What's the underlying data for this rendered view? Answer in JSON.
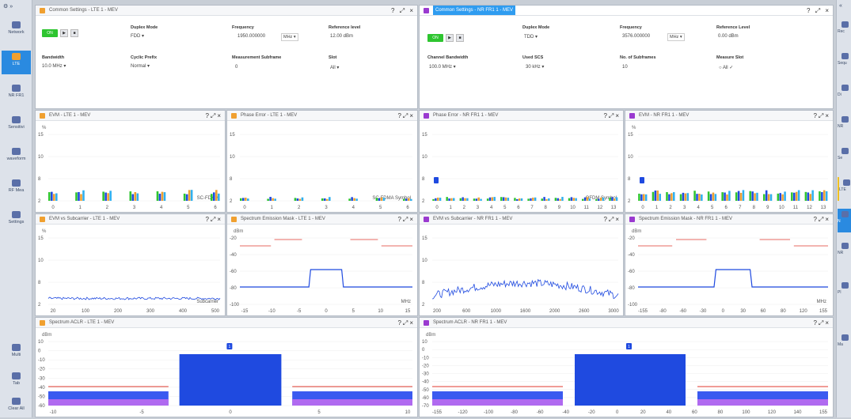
{
  "left_sidebar": [
    {
      "label": "Network",
      "active": false
    },
    {
      "label": "LTE",
      "active": true
    },
    {
      "label": "NR FR1",
      "active": false
    },
    {
      "label": "Sensitivi",
      "active": false
    },
    {
      "label": "waveform",
      "active": false
    },
    {
      "label": "RF Mea",
      "active": false
    },
    {
      "label": "Settings",
      "active": false
    },
    {
      "label": "Multi",
      "active": false
    },
    {
      "label": "Tab",
      "active": false
    },
    {
      "label": "Clear All",
      "active": false
    }
  ],
  "right_sidebar": [
    "Rec",
    "Sequ",
    "Di",
    "NR",
    "Se",
    "LTE",
    "N",
    "NR",
    "Pl",
    "Ma"
  ],
  "common": {
    "help": "?",
    "expand": "⤢",
    "close": "×",
    "on_label": "ON",
    "play": "▶",
    "stop": "■"
  },
  "lte_settings": {
    "title": "Common Settings - LTE 1 - MEV",
    "duplex_mode_label": "Duplex Mode",
    "duplex_mode_value": "FDD",
    "frequency_label": "Frequency",
    "frequency_value": "1950.000000",
    "frequency_unit": "MHz",
    "reference_level_label": "Reference level",
    "reference_level_value": "12.00 dBm",
    "bandwidth_label": "Bandwidth",
    "bandwidth_value": "10.0 MHz",
    "cyclic_prefix_label": "Cyclic Prefix",
    "cyclic_prefix_value": "Normal",
    "measurement_subframe_label": "Measurement Subframe",
    "measurement_subframe_value": "0",
    "slot_label": "Slot",
    "slot_value": "All"
  },
  "nr_settings": {
    "title": "Common Settings - NR FR1 1 - MEV",
    "duplex_mode_label": "Duplex Mode",
    "duplex_mode_value": "TDD",
    "frequency_label": "Frequency",
    "frequency_value": "3576.000000",
    "frequency_unit": "MHz",
    "reference_level_label": "Reference Level",
    "reference_level_value": "0.00 dBm",
    "channel_bandwidth_label": "Channel Bandwidth",
    "channel_bandwidth_value": "100.0 MHz",
    "used_scs_label": "Used SCS",
    "used_scs_value": "30 kHz",
    "subframes_label": "No. of Subframes",
    "subframes_value": "10",
    "measure_slot_label": "Measure Slot",
    "measure_slot_value": "All"
  },
  "charts": [
    {
      "id": "evm-lte",
      "title": "EVM - LTE 1 - MEV",
      "unit": "%",
      "kind": "evm-bars",
      "ylim": [
        0,
        15
      ],
      "yticks": [
        15,
        10,
        8,
        2
      ],
      "xticks": [
        "0",
        "1",
        "2",
        "3",
        "4",
        "5",
        "6"
      ],
      "xlabel": "SC-FDMA",
      "marker": false
    },
    {
      "id": "phase-lte",
      "title": "Phase Error - LTE 1 - MEV",
      "unit": "",
      "kind": "phase-bars",
      "ylim": [
        0,
        15
      ],
      "yticks": [
        15,
        10,
        8,
        2
      ],
      "xticks": [
        "0",
        "1",
        "2",
        "3",
        "4",
        "5",
        "6"
      ],
      "xlabel": "SC-FDMA Symbol",
      "marker": false
    },
    {
      "id": "phase-nr",
      "title": "Phase Error - NR FR1 1 - MEV",
      "unit": "",
      "kind": "phase-bars",
      "ylim": [
        0,
        15
      ],
      "yticks": [
        15,
        10,
        8,
        2
      ],
      "xticks": [
        "0",
        "1",
        "2",
        "3",
        "4",
        "5",
        "6",
        "7",
        "8",
        "9",
        "10",
        "11",
        "12",
        "13"
      ],
      "xlabel": "OFDM Symbol",
      "marker": true
    },
    {
      "id": "evm-nr",
      "title": "EVM - NR FR1 1 - MEV",
      "unit": "%",
      "kind": "evm-bars",
      "ylim": [
        0,
        15
      ],
      "yticks": [
        15,
        10,
        8,
        2
      ],
      "xticks": [
        "0",
        "1",
        "2",
        "3",
        "4",
        "5",
        "6",
        "7",
        "8",
        "9",
        "10",
        "11",
        "12",
        "13"
      ],
      "xlabel": "",
      "marker": true
    },
    {
      "id": "evmsc-lte",
      "title": "EVM vs Subcarrier - LTE 1 - MEV",
      "unit": "%",
      "kind": "noise-flat",
      "ylim": [
        0,
        15
      ],
      "yticks": [
        15,
        10,
        8,
        2
      ],
      "xticks": [
        "20",
        "100",
        "200",
        "300",
        "400",
        "500"
      ],
      "xlabel": "Subcarrier"
    },
    {
      "id": "sem-lte",
      "title": "Spectrum Emission Mask - LTE 1 - MEV",
      "unit": "dBm",
      "kind": "sem",
      "ylim": [
        -100,
        0
      ],
      "yticks": [
        "-20",
        "-40",
        "-60",
        "-80",
        "-100"
      ],
      "xticks": [
        "-15",
        "-10",
        "-5",
        "0",
        "5",
        "10",
        "15"
      ],
      "xlabel": "MHz"
    },
    {
      "id": "evmsc-nr",
      "title": "EVM vs Subcarrier - NR FR1 1 - MEV",
      "unit": "",
      "kind": "noise-hump",
      "ylim": [
        0,
        15
      ],
      "yticks": [
        15,
        10,
        8,
        2
      ],
      "xticks": [
        "200",
        "600",
        "1000",
        "1600",
        "2000",
        "2600",
        "3000"
      ],
      "xlabel": ""
    },
    {
      "id": "sem-nr",
      "title": "Spectrum Emission Mask - NR FR1 1 - MEV",
      "unit": "dBm",
      "kind": "sem",
      "ylim": [
        -100,
        -20
      ],
      "yticks": [
        "-20",
        "-40",
        "-60",
        "-80",
        "-100"
      ],
      "xticks": [
        "-155",
        "-80",
        "-60",
        "-30",
        "0",
        "30",
        "60",
        "80",
        "120",
        "155"
      ],
      "xlabel": "MHz"
    },
    {
      "id": "aclr-lte",
      "title": "Spectrum ACLR - LTE 1 - MEV",
      "unit": "dBm",
      "kind": "aclr",
      "ylim": [
        -70,
        10
      ],
      "yticks": [
        "10",
        "0",
        "-10",
        "-20",
        "-30",
        "-40",
        "-50",
        "-60"
      ],
      "xticks": [
        "-10",
        "-5",
        "0",
        "5",
        "10"
      ],
      "xlabel": "",
      "marker_label": "1"
    },
    {
      "id": "aclr-nr",
      "title": "Spectrum ACLR - NR FR1 1 - MEV",
      "unit": "dBm",
      "kind": "aclr",
      "ylim": [
        -80,
        10
      ],
      "yticks": [
        "10",
        "0",
        "-10",
        "-20",
        "-30",
        "-40",
        "-50",
        "-60",
        "-70"
      ],
      "xticks": [
        "-155",
        "-120",
        "-100",
        "-80",
        "-60",
        "-40",
        "-20",
        "0",
        "20",
        "40",
        "60",
        "80",
        "100",
        "120",
        "140",
        "155"
      ],
      "xlabel": "Hz",
      "marker_label": "1"
    }
  ],
  "colors": {
    "accent": "#2f9cf0",
    "trace": "#1f4ae0",
    "mask": "#e03a2f",
    "lte_icon": "#f0a030",
    "nr_icon": "#9a3ad0",
    "green_on": "#2ec530"
  }
}
